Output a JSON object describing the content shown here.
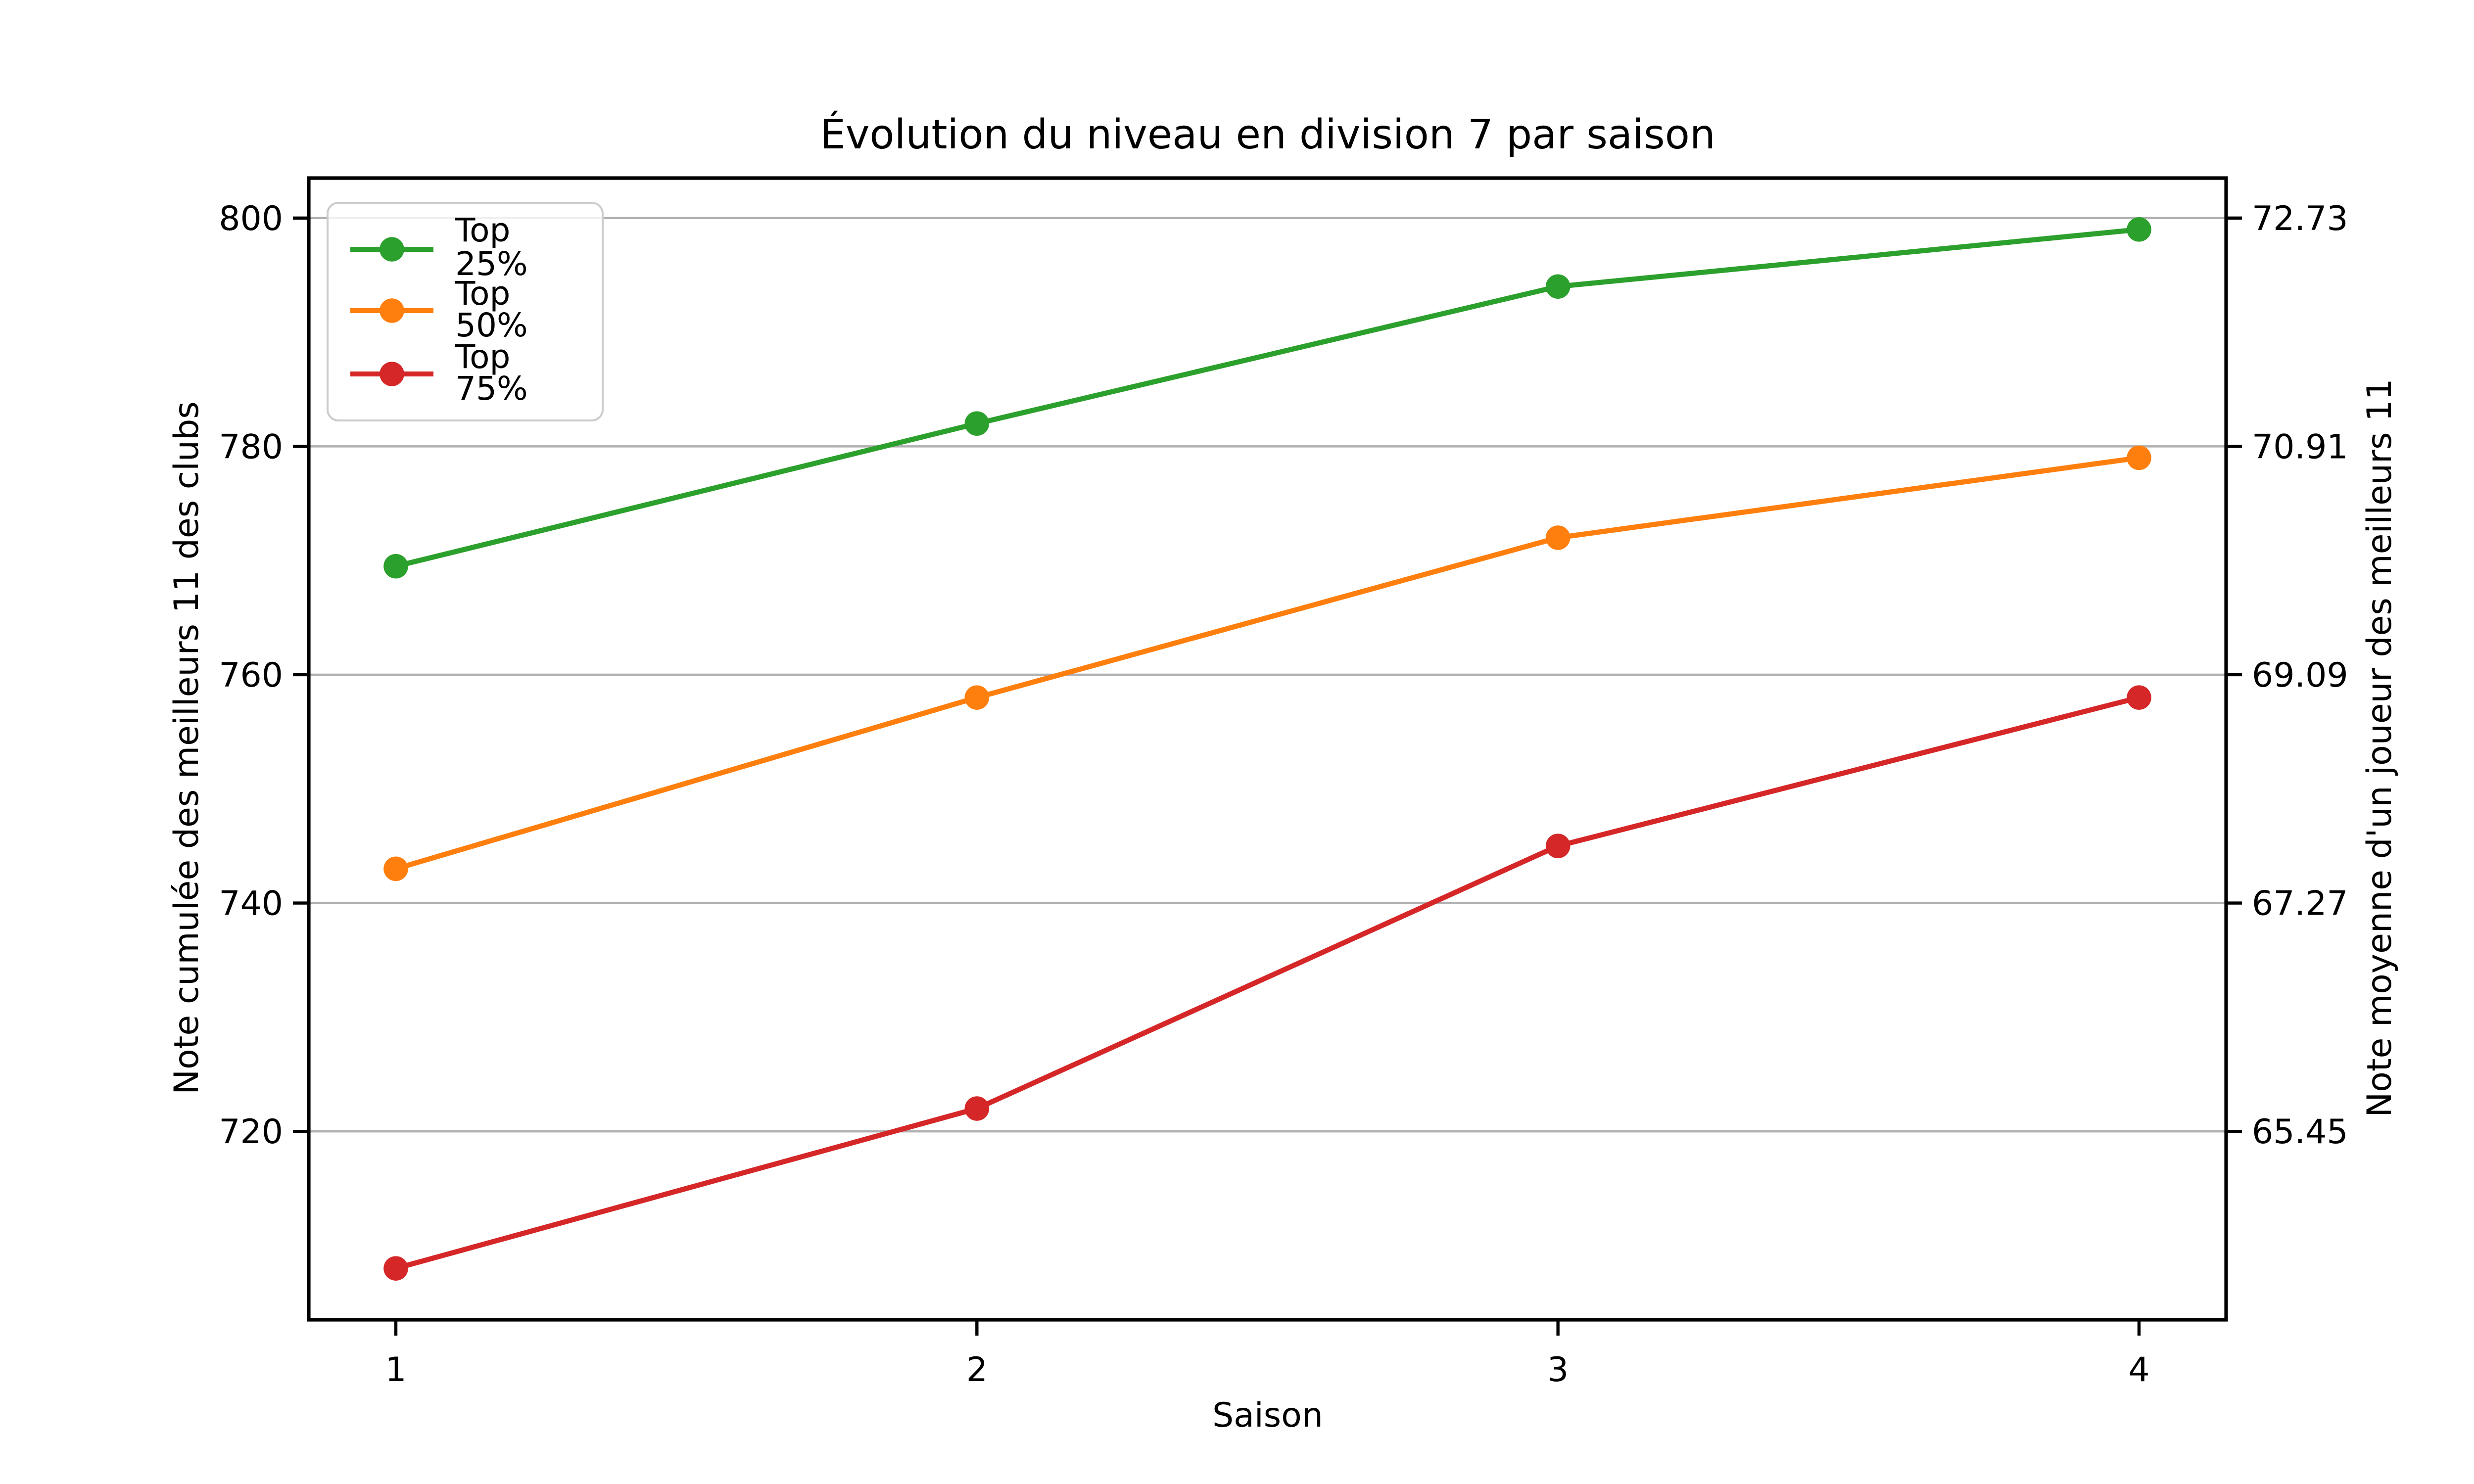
{
  "chart_data": {
    "type": "line",
    "title": "Évolution du niveau en division 7 par saison",
    "xlabel": "Saison",
    "ylabel_left": "Note cumulée des meilleurs 11 des clubs",
    "ylabel_right": "Note moyenne d'un joueur des meilleurs 11",
    "x": [
      1,
      2,
      3,
      4
    ],
    "xticklabels": [
      "1",
      "2",
      "3",
      "4"
    ],
    "series": [
      {
        "name": "Top 25%",
        "color": "#2ca02c",
        "values": [
          769.5,
          782,
          794,
          799
        ]
      },
      {
        "name": "Top 50%",
        "color": "#ff7f0e",
        "values": [
          743,
          758,
          772,
          779
        ]
      },
      {
        "name": "Top 75%",
        "color": "#d62728",
        "values": [
          708,
          722,
          745,
          758
        ]
      }
    ],
    "yticks_left": [
      720,
      740,
      760,
      780,
      800
    ],
    "yticklabels_left": [
      "720",
      "740",
      "760",
      "780",
      "800"
    ],
    "yticklabels_right": [
      "65.45",
      "67.27",
      "69.09",
      "70.91",
      "72.73"
    ],
    "ylim": [
      703.5,
      803.5
    ],
    "xlim_seasons": [
      0.85,
      4.15
    ],
    "grid": "horizontal",
    "grid_color": "#b0b0b0",
    "axis_color": "#000000",
    "text_color": "#000000",
    "background": "#ffffff",
    "legend_position": "upper-left",
    "legend_border_color": "#cccccc"
  }
}
